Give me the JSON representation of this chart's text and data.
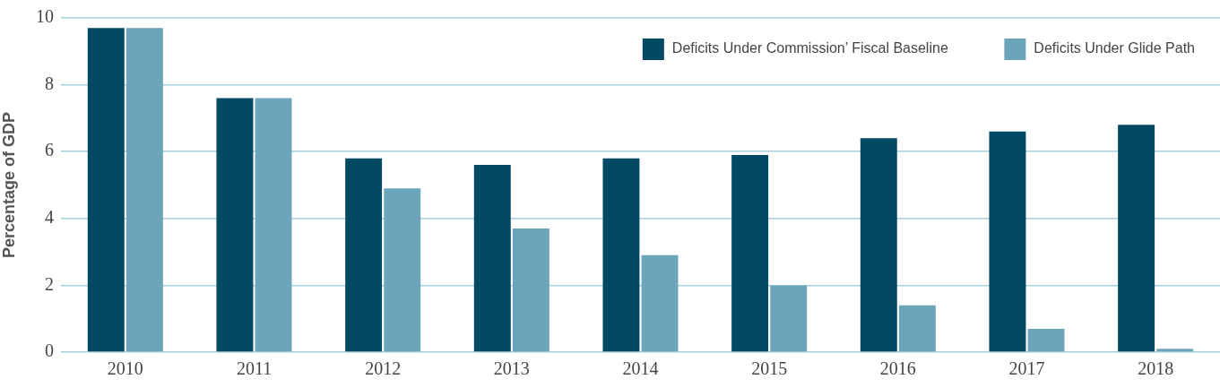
{
  "chart_data": {
    "type": "bar",
    "categories": [
      "2010",
      "2011",
      "2012",
      "2013",
      "2014",
      "2015",
      "2016",
      "2017",
      "2018"
    ],
    "series": [
      {
        "name": "Deficits Under Commission’ Fiscal Baseline",
        "color": "#024a63",
        "values": [
          9.7,
          7.6,
          5.8,
          5.6,
          5.8,
          5.9,
          6.4,
          6.6,
          6.8
        ]
      },
      {
        "name": "Deficits Under Glide Path",
        "color": "#6ca5bb",
        "values": [
          9.7,
          7.6,
          4.9,
          3.7,
          2.9,
          2.0,
          1.4,
          0.7,
          0.1
        ]
      }
    ],
    "ylabel": "Percentage of GDP",
    "ylim": [
      0,
      10
    ],
    "yticks": [
      0,
      2,
      4,
      6,
      8,
      10
    ],
    "grid": "y",
    "legend": "top right"
  }
}
